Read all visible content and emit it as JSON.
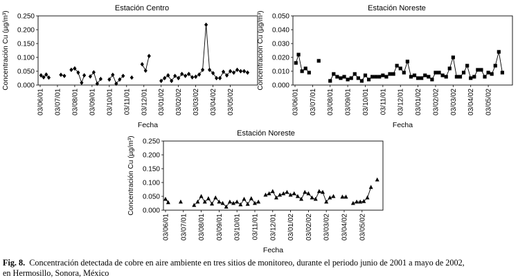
{
  "caption": {
    "label": "Fig. 8.",
    "text": "Concentración detectada de cobre en aire ambiente en tres sitios de monitoreo, durante el periodo junio de 2001 a mayo de 2002,",
    "text2": "en Hermosillo, Sonora, México"
  },
  "chart_data": [
    {
      "type": "line",
      "title": "Estación Centro",
      "xlabel": "Fecha",
      "ylabel": "Concentración Cu (µg/m³)",
      "ylim": [
        0,
        0.25
      ],
      "yticks": [
        "0.000",
        "0.050",
        "0.100",
        "0.150",
        "0.200",
        "0.250"
      ],
      "xticks": [
        "03/06/01",
        "03/07/01",
        "03/08/01",
        "03/09/01",
        "03/10/01",
        "03/11/01",
        "03/12/01",
        "03/01/02",
        "03/02/02",
        "03/03/02",
        "03/04/02",
        "03/05/02"
      ],
      "marker": "diamond",
      "x_end": 12.0,
      "series": [
        {
          "name": "Cu",
          "segments": [
            [
              [
                0.05,
                0.035
              ],
              [
                0.2,
                0.028
              ],
              [
                0.35,
                0.038
              ],
              [
                0.5,
                0.027
              ]
            ],
            [
              [
                1.2,
                0.037
              ],
              [
                1.4,
                0.033
              ]
            ],
            [
              [
                1.8,
                0.055
              ],
              [
                2.0,
                0.06
              ],
              [
                2.2,
                0.045
              ],
              [
                2.4,
                0.008
              ],
              [
                2.55,
                0.035
              ]
            ],
            [
              [
                2.9,
                0.031
              ],
              [
                3.1,
                0.046
              ],
              [
                3.3,
                0.005
              ],
              [
                3.5,
                0.022
              ]
            ],
            [
              [
                4.0,
                0.02
              ],
              [
                4.2,
                0.037
              ],
              [
                4.4,
                0.005
              ],
              [
                4.6,
                0.02
              ],
              [
                4.8,
                0.033
              ]
            ],
            [
              [
                5.3,
                0.027
              ]
            ],
            [
              [
                5.9,
                0.075
              ],
              [
                6.1,
                0.052
              ],
              [
                6.3,
                0.105
              ]
            ],
            [
              [
                7.0,
                0.015
              ],
              [
                7.2,
                0.025
              ],
              [
                7.4,
                0.035
              ],
              [
                7.6,
                0.015
              ],
              [
                7.8,
                0.033
              ],
              [
                8.0,
                0.025
              ],
              [
                8.2,
                0.04
              ],
              [
                8.4,
                0.033
              ],
              [
                8.6,
                0.04
              ],
              [
                8.8,
                0.028
              ],
              [
                9.0,
                0.03
              ],
              [
                9.2,
                0.038
              ],
              [
                9.4,
                0.055
              ],
              [
                9.6,
                0.218
              ],
              [
                9.8,
                0.055
              ],
              [
                10.0,
                0.043
              ],
              [
                10.2,
                0.025
              ],
              [
                10.4,
                0.025
              ],
              [
                10.6,
                0.048
              ],
              [
                10.8,
                0.035
              ],
              [
                11.0,
                0.05
              ],
              [
                11.2,
                0.045
              ],
              [
                11.4,
                0.055
              ],
              [
                11.6,
                0.05
              ],
              [
                11.8,
                0.05
              ],
              [
                12.0,
                0.045
              ]
            ]
          ]
        }
      ]
    },
    {
      "type": "line",
      "title": "Estación Noreste",
      "xlabel": "Fecha",
      "ylabel": "Concentración Cu (µg/m³)",
      "ylim": [
        0,
        0.05
      ],
      "yticks": [
        "0.000",
        "0.010",
        "0.020",
        "0.030",
        "0.040",
        "0.050"
      ],
      "xticks": [
        "03/06/01",
        "03/07/01",
        "03/08/01",
        "03/09/01",
        "03/10/01",
        "03/11/01",
        "03/12/01",
        "03/01/02",
        "03/02/02",
        "03/03/02",
        "03/04/02",
        "03/05/02"
      ],
      "marker": "square",
      "x_end": 11.8,
      "series": [
        {
          "name": "Cu",
          "segments": [
            [
              [
                0.05,
                0.016
              ],
              [
                0.2,
                0.022
              ],
              [
                0.4,
                0.01
              ],
              [
                0.6,
                0.012
              ],
              [
                0.8,
                0.009
              ]
            ],
            [
              [
                1.35,
                0.0175
              ]
            ],
            [
              [
                2.0,
                0.003
              ],
              [
                2.2,
                0.008
              ],
              [
                2.4,
                0.006
              ],
              [
                2.6,
                0.005
              ],
              [
                2.8,
                0.006
              ],
              [
                3.0,
                0.004
              ],
              [
                3.2,
                0.005
              ],
              [
                3.4,
                0.008
              ],
              [
                3.6,
                0.005
              ],
              [
                3.8,
                0.003
              ],
              [
                4.0,
                0.007
              ],
              [
                4.2,
                0.004
              ],
              [
                4.4,
                0.006
              ],
              [
                4.6,
                0.006
              ],
              [
                4.8,
                0.006
              ],
              [
                5.0,
                0.007
              ],
              [
                5.2,
                0.006
              ],
              [
                5.4,
                0.008
              ],
              [
                5.6,
                0.008
              ],
              [
                5.8,
                0.014
              ],
              [
                6.0,
                0.012
              ],
              [
                6.2,
                0.009
              ],
              [
                6.4,
                0.017
              ],
              [
                6.6,
                0.006
              ],
              [
                6.8,
                0.007
              ],
              [
                7.0,
                0.005
              ],
              [
                7.2,
                0.005
              ],
              [
                7.4,
                0.007
              ],
              [
                7.6,
                0.006
              ],
              [
                7.8,
                0.004
              ],
              [
                8.0,
                0.009
              ],
              [
                8.2,
                0.009
              ],
              [
                8.4,
                0.007
              ],
              [
                8.6,
                0.006
              ],
              [
                8.8,
                0.012
              ],
              [
                9.0,
                0.02
              ],
              [
                9.2,
                0.006
              ],
              [
                9.4,
                0.006
              ],
              [
                9.6,
                0.009
              ],
              [
                9.8,
                0.014
              ],
              [
                10.0,
                0.005
              ],
              [
                10.2,
                0.006
              ],
              [
                10.4,
                0.011
              ],
              [
                10.6,
                0.011
              ],
              [
                10.8,
                0.006
              ],
              [
                11.0,
                0.009
              ],
              [
                11.2,
                0.008
              ],
              [
                11.4,
                0.014
              ],
              [
                11.6,
                0.024
              ],
              [
                11.8,
                0.009
              ]
            ]
          ]
        }
      ]
    },
    {
      "type": "line",
      "title": "Estación Noreste",
      "xlabel": "Fecha",
      "ylabel": "Concentración Cu (µg/m³)",
      "ylim": [
        0,
        0.25
      ],
      "yticks": [
        "0.000",
        "0.050",
        "0.100",
        "0.150",
        "0.200",
        "0.250"
      ],
      "xticks": [
        "03/06/01",
        "03/07/01",
        "03/08/01",
        "03/09/01",
        "03/10/01",
        "03/11/01",
        "03/12/01",
        "03/01/02",
        "03/02/02",
        "03/03/02",
        "03/04/02",
        "03/05/02"
      ],
      "marker": "triangle",
      "x_end": 11.6,
      "series": [
        {
          "name": "Cu",
          "segments": [
            [
              [
                0.0,
                0.04
              ],
              [
                0.15,
                0.028
              ]
            ],
            [
              [
                0.85,
                0.03
              ]
            ],
            [
              [
                1.6,
                0.018
              ],
              [
                1.8,
                0.03
              ],
              [
                2.0,
                0.05
              ],
              [
                2.2,
                0.03
              ],
              [
                2.4,
                0.042
              ],
              [
                2.6,
                0.023
              ],
              [
                2.8,
                0.045
              ],
              [
                3.0,
                0.03
              ],
              [
                3.2,
                0.025
              ],
              [
                3.4,
                0.012
              ],
              [
                3.6,
                0.03
              ],
              [
                3.8,
                0.025
              ],
              [
                4.0,
                0.03
              ],
              [
                4.2,
                0.02
              ],
              [
                4.4,
                0.04
              ],
              [
                4.6,
                0.022
              ],
              [
                4.8,
                0.042
              ],
              [
                5.0,
                0.025
              ],
              [
                5.2,
                0.03
              ]
            ],
            [
              [
                5.6,
                0.055
              ],
              [
                5.8,
                0.06
              ],
              [
                6.0,
                0.068
              ],
              [
                6.2,
                0.045
              ],
              [
                6.4,
                0.055
              ],
              [
                6.6,
                0.06
              ],
              [
                6.8,
                0.065
              ],
              [
                7.0,
                0.055
              ],
              [
                7.2,
                0.06
              ],
              [
                7.4,
                0.05
              ],
              [
                7.6,
                0.04
              ],
              [
                7.8,
                0.065
              ],
              [
                8.0,
                0.06
              ],
              [
                8.2,
                0.045
              ],
              [
                8.4,
                0.04
              ],
              [
                8.6,
                0.068
              ],
              [
                8.8,
                0.065
              ],
              [
                9.0,
                0.03
              ],
              [
                9.2,
                0.045
              ],
              [
                9.4,
                0.05
              ]
            ],
            [
              [
                9.9,
                0.048
              ],
              [
                10.1,
                0.048
              ]
            ],
            [
              [
                10.5,
                0.025
              ],
              [
                10.7,
                0.03
              ],
              [
                10.9,
                0.03
              ],
              [
                11.1,
                0.032
              ],
              [
                11.3,
                0.045
              ],
              [
                11.5,
                0.083
              ]
            ],
            [
              [
                11.85,
                0.11
              ]
            ]
          ]
        }
      ]
    }
  ]
}
